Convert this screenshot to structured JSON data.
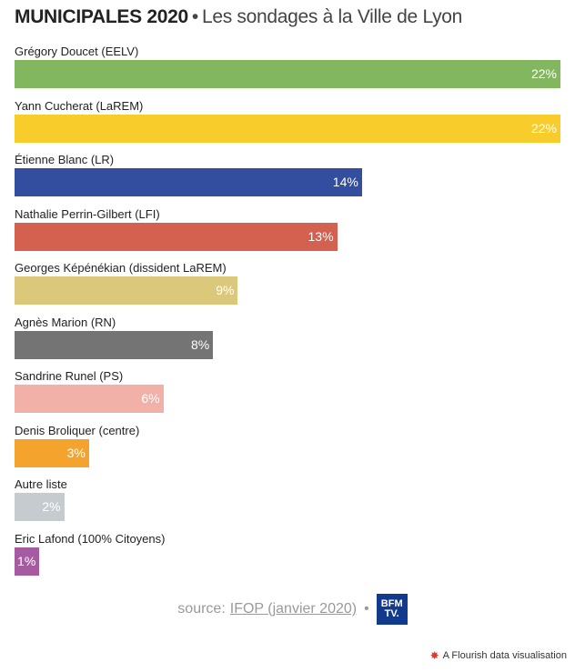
{
  "header": {
    "title_strong": "MUNICIPALES 2020",
    "separator": "•",
    "title_rest": "Les sondages à la Ville de Lyon"
  },
  "chart_data": {
    "type": "bar",
    "orientation": "horizontal",
    "title": "MUNICIPALES 2020 • Les sondages à la Ville de Lyon",
    "xlabel": "",
    "ylabel": "",
    "xlim": [
      0,
      22
    ],
    "unit": "%",
    "categories": [
      "Grégory Doucet (EELV)",
      "Yann Cucherat (LaREM)",
      "Étienne Blanc (LR)",
      "Nathalie Perrin-Gilbert (LFI)",
      "Georges Képénékian (dissident LaREM)",
      "Agnès Marion (RN)",
      "Sandrine Runel (PS)",
      "Denis Broliquer (centre)",
      "Autre liste",
      "Eric Lafond (100% Citoyens)"
    ],
    "values": [
      22,
      22,
      14,
      13,
      9,
      8,
      6,
      3,
      2,
      1
    ],
    "labels": [
      "22%",
      "22%",
      "14%",
      "13%",
      "9%",
      "8%",
      "6%",
      "3%",
      "2%",
      "1%"
    ],
    "colors": [
      "#82b65f",
      "#f8cc2a",
      "#344e9f",
      "#d4604f",
      "#dcc87a",
      "#747474",
      "#f1b1a8",
      "#f4a42d",
      "#c6cbd0",
      "#a65ba1"
    ]
  },
  "footer": {
    "source_prefix": "source:",
    "source_link": "IFOP (janvier 2020)",
    "dot": "•",
    "logo_line1": "BFM",
    "logo_line2": "TV.",
    "credit": "A Flourish data visualisation"
  }
}
